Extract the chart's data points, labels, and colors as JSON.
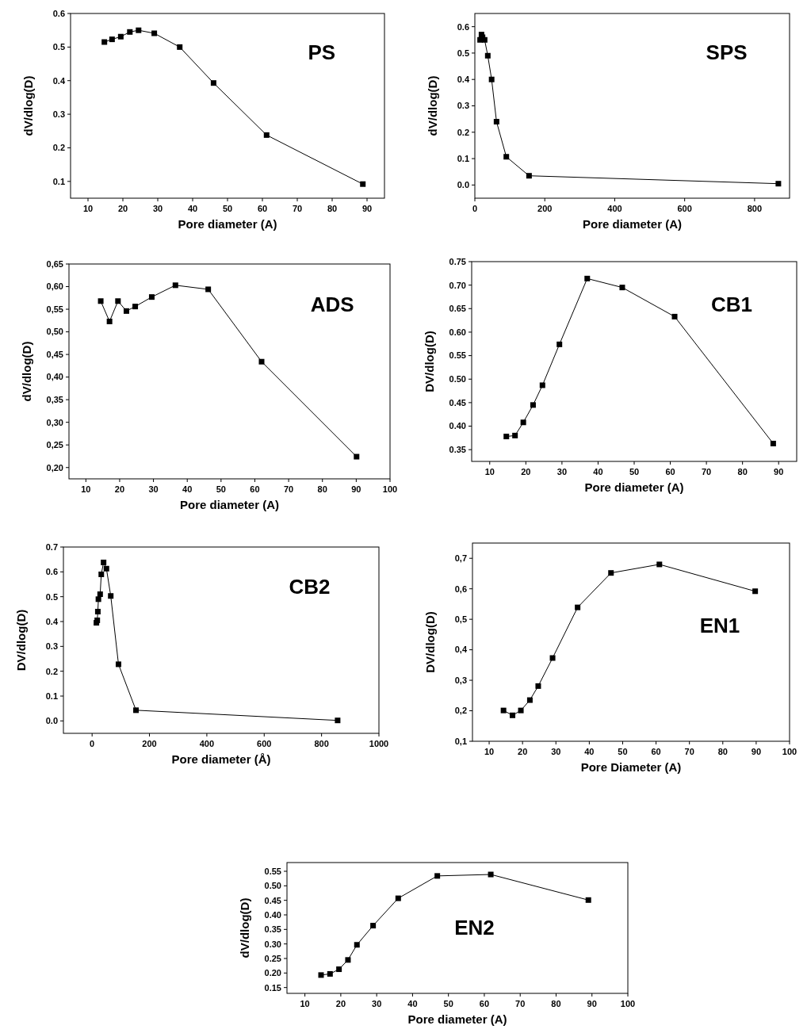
{
  "chart_data": [
    {
      "type": "line",
      "title": "PS",
      "xlabel": "Pore diameter (A)",
      "ylabel": "dV/dlog(D)",
      "marker": "square",
      "line_style": "solid",
      "grid": false,
      "xlim": [
        5,
        95
      ],
      "xticks": [
        10,
        20,
        30,
        40,
        50,
        60,
        70,
        80,
        90
      ],
      "ylim": [
        0.05,
        0.6
      ],
      "yticks": [
        0.1,
        0.2,
        0.3,
        0.4,
        0.5,
        0.6
      ],
      "x": [
        14.7,
        16.9,
        19.4,
        22,
        24.5,
        29,
        36.3,
        46,
        61.2,
        88.8
      ],
      "series": [
        {
          "color": "#000000",
          "values": [
            0.515,
            0.523,
            0.531,
            0.545,
            0.55,
            0.541,
            0.5,
            0.393,
            0.238,
            0.092
          ]
        }
      ]
    },
    {
      "type": "line",
      "title": "SPS",
      "xlabel": "Pore diameter (A)",
      "ylabel": "dV/dlog(D)",
      "marker": "square",
      "line_style": "solid",
      "grid": false,
      "xlim": [
        0,
        900
      ],
      "xticks": [
        0,
        200,
        400,
        600,
        800
      ],
      "ylim": [
        -0.05,
        0.65
      ],
      "yticks": [
        {
          "value": 0,
          "label": "0.0"
        },
        0.1,
        0.2,
        0.3,
        0.4,
        0.5,
        0.6
      ],
      "x": [
        15,
        19,
        22,
        25,
        28,
        37,
        48,
        62,
        90,
        155,
        868
      ],
      "series": [
        {
          "color": "#000000",
          "values": [
            0.55,
            0.57,
            0.56,
            null,
            0.55,
            0.49,
            0.4,
            0.24,
            0.107,
            0.035,
            0.005
          ]
        }
      ]
    },
    {
      "type": "line",
      "title": "ADS",
      "xlabel": "Pore diameter (A)",
      "ylabel": "dV/dlog(D)",
      "marker": "square",
      "line_style": "solid",
      "grid": false,
      "xlim": [
        5,
        100
      ],
      "xticks": [
        10,
        20,
        30,
        40,
        50,
        60,
        70,
        80,
        90,
        100
      ],
      "ylim": [
        0.175,
        0.65
      ],
      "yticks": [
        {
          "value": 0.2,
          "label": "0,20"
        },
        {
          "value": 0.25,
          "label": "0,25"
        },
        {
          "value": 0.3,
          "label": "0,30"
        },
        {
          "value": 0.35,
          "label": "0,35"
        },
        {
          "value": 0.4,
          "label": "0,40"
        },
        {
          "value": 0.45,
          "label": "0,45"
        },
        {
          "value": 0.5,
          "label": "0,50"
        },
        {
          "value": 0.55,
          "label": "0,55"
        },
        {
          "value": 0.6,
          "label": "0,60"
        },
        {
          "value": 0.65,
          "label": "0,65"
        }
      ],
      "x": [
        14.4,
        17,
        19.5,
        22,
        24.6,
        29.5,
        36.5,
        46.2,
        62,
        90.1
      ],
      "series": [
        {
          "color": "#000000",
          "values": [
            0.568,
            0.523,
            0.568,
            0.546,
            0.556,
            0.577,
            0.603,
            0.594,
            0.434,
            0.224
          ]
        }
      ]
    },
    {
      "type": "line",
      "title": "CB1",
      "xlabel": "Pore diameter (A)",
      "ylabel": "DV/dlog(D)",
      "marker": "square",
      "line_style": "solid",
      "grid": false,
      "xlim": [
        5,
        95
      ],
      "xticks": [
        10,
        20,
        30,
        40,
        50,
        60,
        70,
        80,
        90
      ],
      "ylim": [
        0.325,
        0.75
      ],
      "yticks": [
        0.35,
        {
          "value": 0.4,
          "label": "0.40"
        },
        0.45,
        {
          "value": 0.5,
          "label": "0.50"
        },
        0.55,
        {
          "value": 0.6,
          "label": "0.60"
        },
        0.65,
        {
          "value": 0.7,
          "label": "0.70"
        },
        0.75
      ],
      "x": [
        14.6,
        17,
        19.3,
        22,
        24.6,
        29.3,
        37,
        46.7,
        61.2,
        88.5
      ],
      "series": [
        {
          "color": "#000000",
          "values": [
            0.378,
            0.38,
            0.408,
            0.445,
            0.487,
            0.574,
            0.714,
            0.695,
            0.633,
            0.363
          ]
        }
      ]
    },
    {
      "type": "line",
      "title": "CB2",
      "xlabel": "Pore diameter (Å)",
      "ylabel": "DV/dlog(D)",
      "marker": "square",
      "line_style": "solid",
      "grid": false,
      "xlim": [
        -100,
        1000
      ],
      "xticks": [
        0,
        200,
        400,
        600,
        800,
        1000
      ],
      "ylim": [
        -0.05,
        0.7
      ],
      "yticks": [
        {
          "value": 0,
          "label": "0.0"
        },
        0.1,
        0.2,
        0.3,
        0.4,
        0.5,
        0.6,
        0.7
      ],
      "x": [
        15,
        18,
        20,
        22,
        25,
        28,
        32,
        40,
        50,
        65,
        92,
        153,
        856
      ],
      "series": [
        {
          "color": "#000000",
          "values": [
            0.395,
            0.405,
            0.44,
            0.49,
            null,
            0.51,
            0.59,
            0.638,
            0.613,
            0.503,
            0.228,
            0.043,
            0.002
          ]
        }
      ]
    },
    {
      "type": "line",
      "title": "EN1",
      "xlabel": "Pore Diameter (A)",
      "ylabel": "DV/dlog(D)",
      "marker": "square",
      "line_style": "solid",
      "grid": false,
      "xlim": [
        5,
        100
      ],
      "xticks": [
        10,
        20,
        30,
        40,
        50,
        60,
        70,
        80,
        90,
        100
      ],
      "ylim": [
        0.1,
        0.75
      ],
      "yticks": [
        {
          "value": 0.1,
          "label": "0,1"
        },
        {
          "value": 0.2,
          "label": "0,2"
        },
        {
          "value": 0.3,
          "label": "0,3"
        },
        {
          "value": 0.4,
          "label": "0,4"
        },
        {
          "value": 0.5,
          "label": "0,5"
        },
        {
          "value": 0.6,
          "label": "0,6"
        },
        {
          "value": 0.7,
          "label": "0,7"
        }
      ],
      "x": [
        14.3,
        17,
        19.5,
        22.2,
        24.7,
        29,
        36.5,
        46.5,
        61,
        89.7
      ],
      "series": [
        {
          "color": "#000000",
          "values": [
            0.201,
            0.185,
            0.201,
            0.235,
            0.281,
            0.373,
            0.539,
            0.652,
            0.68,
            0.592
          ]
        }
      ]
    },
    {
      "type": "line",
      "title": "EN2",
      "xlabel": "Pore diameter (A)",
      "ylabel": "dV/dlog(D)",
      "marker": "square",
      "line_style": "solid",
      "grid": false,
      "xlim": [
        5,
        100
      ],
      "xticks": [
        10,
        20,
        30,
        40,
        50,
        60,
        70,
        80,
        90,
        100
      ],
      "ylim": [
        0.13,
        0.58
      ],
      "yticks": [
        0.15,
        {
          "value": 0.2,
          "label": "0.20"
        },
        0.25,
        {
          "value": 0.3,
          "label": "0.30"
        },
        0.35,
        {
          "value": 0.4,
          "label": "0.40"
        },
        0.45,
        {
          "value": 0.5,
          "label": "0.50"
        },
        0.55
      ],
      "x": [
        14.5,
        17,
        19.5,
        22,
        24.5,
        29,
        36,
        46.9,
        61.8,
        89
      ],
      "series": [
        {
          "color": "#000000",
          "values": [
            0.193,
            0.197,
            0.213,
            0.245,
            0.297,
            0.363,
            0.457,
            0.534,
            0.539,
            0.451
          ]
        }
      ]
    }
  ]
}
